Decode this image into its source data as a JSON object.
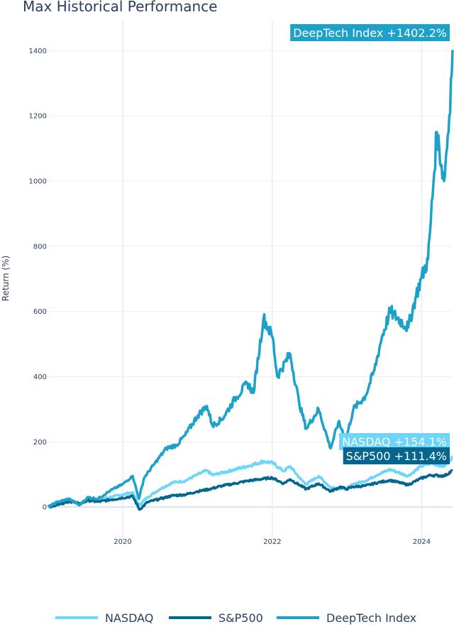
{
  "chart_data": {
    "type": "line",
    "title": "Max Historical Performance",
    "xlabel": "",
    "ylabel": "Return (%)",
    "xlim": [
      "2019-01-02",
      "2024-05-31"
    ],
    "ylim": [
      -100,
      1490
    ],
    "x_ticks": [
      {
        "label": "2020",
        "date": "2020-01-01"
      },
      {
        "label": "2022",
        "date": "2022-01-01"
      },
      {
        "label": "2024",
        "date": "2024-01-01"
      }
    ],
    "y_ticks": [
      0,
      200,
      400,
      600,
      800,
      1000,
      1200,
      1400
    ],
    "grid": true,
    "legend_position": "bottom",
    "series": [
      {
        "name": "NASDAQ",
        "color": "#6dd5f7",
        "end_label": "NASDAQ +154.1%",
        "points": [
          [
            "2019-01-02",
            0
          ],
          [
            "2019-03-01",
            12
          ],
          [
            "2019-05-01",
            20
          ],
          [
            "2019-06-03",
            10
          ],
          [
            "2019-07-15",
            25
          ],
          [
            "2019-09-01",
            22
          ],
          [
            "2019-11-01",
            30
          ],
          [
            "2020-01-01",
            38
          ],
          [
            "2020-02-19",
            45
          ],
          [
            "2020-03-20",
            5
          ],
          [
            "2020-05-01",
            30
          ],
          [
            "2020-07-01",
            55
          ],
          [
            "2020-09-01",
            75
          ],
          [
            "2020-11-01",
            80
          ],
          [
            "2021-01-01",
            100
          ],
          [
            "2021-02-15",
            112
          ],
          [
            "2021-03-15",
            98
          ],
          [
            "2021-05-01",
            105
          ],
          [
            "2021-07-01",
            115
          ],
          [
            "2021-09-01",
            125
          ],
          [
            "2021-11-19",
            140
          ],
          [
            "2022-01-03",
            135
          ],
          [
            "2022-02-25",
            110
          ],
          [
            "2022-03-29",
            125
          ],
          [
            "2022-05-20",
            85
          ],
          [
            "2022-06-16",
            70
          ],
          [
            "2022-08-15",
            95
          ],
          [
            "2022-10-13",
            60
          ],
          [
            "2022-12-28",
            55
          ],
          [
            "2023-02-01",
            70
          ],
          [
            "2023-04-01",
            80
          ],
          [
            "2023-06-01",
            100
          ],
          [
            "2023-07-31",
            115
          ],
          [
            "2023-10-27",
            95
          ],
          [
            "2023-12-29",
            125
          ],
          [
            "2024-02-15",
            135
          ],
          [
            "2024-04-19",
            125
          ],
          [
            "2024-05-31",
            154.1
          ]
        ]
      },
      {
        "name": "S&P500",
        "color": "#05668d",
        "end_label": "S&P500 +111.4%",
        "points": [
          [
            "2019-01-02",
            0
          ],
          [
            "2019-03-01",
            10
          ],
          [
            "2019-05-01",
            17
          ],
          [
            "2019-06-03",
            9
          ],
          [
            "2019-07-15",
            20
          ],
          [
            "2019-09-01",
            16
          ],
          [
            "2019-11-01",
            22
          ],
          [
            "2020-01-01",
            28
          ],
          [
            "2020-02-19",
            33
          ],
          [
            "2020-03-23",
            -8
          ],
          [
            "2020-05-01",
            15
          ],
          [
            "2020-07-01",
            25
          ],
          [
            "2020-09-01",
            35
          ],
          [
            "2020-11-01",
            38
          ],
          [
            "2021-01-01",
            48
          ],
          [
            "2021-03-01",
            55
          ],
          [
            "2021-05-01",
            65
          ],
          [
            "2021-07-01",
            72
          ],
          [
            "2021-09-01",
            80
          ],
          [
            "2021-12-31",
            90
          ],
          [
            "2022-02-25",
            72
          ],
          [
            "2022-03-29",
            85
          ],
          [
            "2022-06-16",
            55
          ],
          [
            "2022-08-15",
            72
          ],
          [
            "2022-10-13",
            48
          ],
          [
            "2022-12-01",
            62
          ],
          [
            "2022-12-28",
            55
          ],
          [
            "2023-02-01",
            62
          ],
          [
            "2023-04-01",
            65
          ],
          [
            "2023-06-01",
            75
          ],
          [
            "2023-07-31",
            82
          ],
          [
            "2023-10-27",
            68
          ],
          [
            "2023-12-29",
            88
          ],
          [
            "2024-02-15",
            98
          ],
          [
            "2024-04-19",
            95
          ],
          [
            "2024-05-31",
            111.4
          ]
        ]
      },
      {
        "name": "DeepTech Index",
        "color": "#1da1c9",
        "end_label": "DeepTech Index +1402.2%",
        "points": [
          [
            "2019-01-02",
            0
          ],
          [
            "2019-02-15",
            15
          ],
          [
            "2019-04-15",
            25
          ],
          [
            "2019-06-03",
            5
          ],
          [
            "2019-07-15",
            30
          ],
          [
            "2019-09-01",
            25
          ],
          [
            "2019-11-01",
            50
          ],
          [
            "2020-01-01",
            70
          ],
          [
            "2020-02-19",
            95
          ],
          [
            "2020-03-20",
            25
          ],
          [
            "2020-04-15",
            90
          ],
          [
            "2020-06-01",
            130
          ],
          [
            "2020-08-01",
            180
          ],
          [
            "2020-09-20",
            190
          ],
          [
            "2020-11-01",
            220
          ],
          [
            "2021-01-01",
            280
          ],
          [
            "2021-02-15",
            310
          ],
          [
            "2021-03-15",
            250
          ],
          [
            "2021-05-01",
            270
          ],
          [
            "2021-07-01",
            330
          ],
          [
            "2021-09-01",
            380
          ],
          [
            "2021-10-01",
            350
          ],
          [
            "2021-11-19",
            580
          ],
          [
            "2022-01-03",
            520
          ],
          [
            "2022-01-25",
            400
          ],
          [
            "2022-03-29",
            470
          ],
          [
            "2022-05-12",
            320
          ],
          [
            "2022-06-16",
            240
          ],
          [
            "2022-08-15",
            300
          ],
          [
            "2022-10-13",
            180
          ],
          [
            "2022-11-20",
            260
          ],
          [
            "2022-12-28",
            210
          ],
          [
            "2023-02-01",
            300
          ],
          [
            "2023-04-01",
            340
          ],
          [
            "2023-05-15",
            420
          ],
          [
            "2023-06-20",
            520
          ],
          [
            "2023-07-31",
            600
          ],
          [
            "2023-10-27",
            550
          ],
          [
            "2023-12-01",
            640
          ],
          [
            "2023-12-29",
            700
          ],
          [
            "2024-02-01",
            760
          ],
          [
            "2024-02-15",
            880
          ],
          [
            "2024-03-15",
            1150
          ],
          [
            "2024-04-19",
            1000
          ],
          [
            "2024-05-15",
            1200
          ],
          [
            "2024-05-31",
            1402.2
          ]
        ]
      }
    ]
  }
}
